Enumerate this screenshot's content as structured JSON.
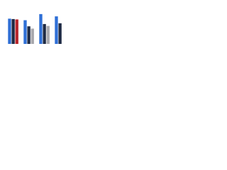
{
  "chart_data": {
    "type": "bar",
    "categories": [
      null,
      null,
      null,
      null
    ],
    "series": [
      {
        "color": "#2f6fd6",
        "values": [
          66,
          62,
          78,
          72
        ]
      },
      {
        "color": "#1e2a44",
        "values": [
          65,
          46,
          52,
          54
        ]
      },
      {
        "color": "#a9a9ae",
        "colors": [
          "#b8262c",
          "#a9a9ae",
          "#a9a9ae",
          "#a9a9ae"
        ],
        "values": [
          64,
          40,
          47,
          null
        ]
      }
    ],
    "ylim": [
      0,
      100
    ]
  }
}
